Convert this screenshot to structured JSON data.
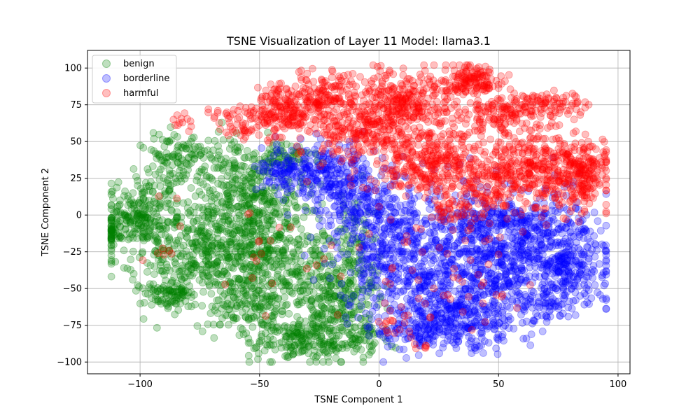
{
  "chart_data": {
    "type": "scatter",
    "title": "TSNE Visualization of Layer 11 Model: llama3.1",
    "xlabel": "TSNE Component 1",
    "ylabel": "TSNE Component 2",
    "xlim": [
      -122,
      105
    ],
    "ylim": [
      -108,
      112
    ],
    "xticks": [
      -100,
      -50,
      0,
      50,
      100
    ],
    "yticks": [
      -100,
      -75,
      -50,
      -25,
      0,
      25,
      50,
      75,
      100
    ],
    "xtick_labels": [
      "−100",
      "−50",
      "0",
      "50",
      "100"
    ],
    "ytick_labels": [
      "−100",
      "−75",
      "−50",
      "−25",
      "0",
      "25",
      "50",
      "75",
      "100"
    ],
    "grid": true,
    "legend_position": "top-left",
    "marker_alpha": 0.25,
    "series": [
      {
        "name": "benign",
        "color": "#008000",
        "clusters": [
          {
            "cx": -72,
            "cy": -25,
            "sx": 18,
            "sy": 20,
            "n": 520
          },
          {
            "cx": -45,
            "cy": -20,
            "sx": 14,
            "sy": 22,
            "n": 380
          },
          {
            "cx": -28,
            "cy": -85,
            "sx": 12,
            "sy": 8,
            "n": 260
          },
          {
            "cx": -100,
            "cy": 0,
            "sx": 8,
            "sy": 10,
            "n": 200
          },
          {
            "cx": -88,
            "cy": 35,
            "sx": 6,
            "sy": 12,
            "n": 90
          },
          {
            "cx": -55,
            "cy": 15,
            "sx": 10,
            "sy": 15,
            "n": 200
          },
          {
            "cx": -20,
            "cy": -55,
            "sx": 10,
            "sy": 15,
            "n": 210
          },
          {
            "cx": -88,
            "cy": -55,
            "sx": 6,
            "sy": 5,
            "n": 70
          },
          {
            "cx": -55,
            "cy": -65,
            "sx": 10,
            "sy": 8,
            "n": 110
          },
          {
            "cx": -80,
            "cy": 45,
            "sx": 4,
            "sy": 6,
            "n": 25
          },
          {
            "cx": -65,
            "cy": 35,
            "sx": 6,
            "sy": 10,
            "n": 60
          },
          {
            "cx": -40,
            "cy": 40,
            "sx": 6,
            "sy": 5,
            "n": 60
          },
          {
            "cx": -10,
            "cy": -30,
            "sx": 6,
            "sy": 20,
            "n": 90
          },
          {
            "cx": -110,
            "cy": -12,
            "sx": 4,
            "sy": 4,
            "n": 35
          },
          {
            "cx": -5,
            "cy": -80,
            "sx": 3,
            "sy": 6,
            "n": 25
          }
        ]
      },
      {
        "name": "borderline",
        "color": "#0000ff",
        "clusters": [
          {
            "cx": 35,
            "cy": -30,
            "sx": 20,
            "sy": 25,
            "n": 650
          },
          {
            "cx": 65,
            "cy": -25,
            "sx": 15,
            "sy": 18,
            "n": 420
          },
          {
            "cx": 30,
            "cy": -70,
            "sx": 15,
            "sy": 10,
            "n": 300
          },
          {
            "cx": 5,
            "cy": -20,
            "sx": 12,
            "sy": 20,
            "n": 300
          },
          {
            "cx": -25,
            "cy": 30,
            "sx": 12,
            "sy": 10,
            "n": 220
          },
          {
            "cx": -10,
            "cy": 10,
            "sx": 10,
            "sy": 12,
            "n": 180
          },
          {
            "cx": 80,
            "cy": -35,
            "sx": 8,
            "sy": 12,
            "n": 130
          },
          {
            "cx": 50,
            "cy": -5,
            "sx": 12,
            "sy": 5,
            "n": 110
          },
          {
            "cx": 15,
            "cy": -80,
            "sx": 8,
            "sy": 4,
            "n": 60
          },
          {
            "cx": 70,
            "cy": -60,
            "sx": 6,
            "sy": 5,
            "n": 45
          },
          {
            "cx": -40,
            "cy": 30,
            "sx": 5,
            "sy": 5,
            "n": 45
          }
        ]
      },
      {
        "name": "harmful",
        "color": "#ff0000",
        "clusters": [
          {
            "cx": 65,
            "cy": 30,
            "sx": 15,
            "sy": 14,
            "n": 520
          },
          {
            "cx": 10,
            "cy": 75,
            "sx": 14,
            "sy": 12,
            "n": 380
          },
          {
            "cx": 20,
            "cy": 35,
            "sx": 12,
            "sy": 12,
            "n": 330
          },
          {
            "cx": 40,
            "cy": 92,
            "sx": 6,
            "sy": 5,
            "n": 120
          },
          {
            "cx": -25,
            "cy": 82,
            "sx": 8,
            "sy": 7,
            "n": 140
          },
          {
            "cx": -40,
            "cy": 68,
            "sx": 7,
            "sy": 6,
            "n": 130
          },
          {
            "cx": -10,
            "cy": 55,
            "sx": 10,
            "sy": 8,
            "n": 170
          },
          {
            "cx": 72,
            "cy": 75,
            "sx": 8,
            "sy": 4,
            "n": 90
          },
          {
            "cx": 85,
            "cy": 30,
            "sx": 5,
            "sy": 10,
            "n": 110
          },
          {
            "cx": 50,
            "cy": 70,
            "sx": 8,
            "sy": 6,
            "n": 110
          },
          {
            "cx": -55,
            "cy": 62,
            "sx": 6,
            "sy": 6,
            "n": 70
          },
          {
            "cx": -45,
            "cy": 82,
            "sx": 3,
            "sy": 3,
            "n": 20
          },
          {
            "cx": 35,
            "cy": 5,
            "sx": 8,
            "sy": 5,
            "n": 60
          },
          {
            "cx": -82,
            "cy": 64,
            "sx": 2,
            "sy": 3,
            "n": 12
          },
          {
            "cx": -70,
            "cy": 70,
            "sx": 2,
            "sy": 2,
            "n": 6
          },
          {
            "cx": 25,
            "cy": -40,
            "sx": 18,
            "sy": 22,
            "n": 65
          },
          {
            "cx": -40,
            "cy": -20,
            "sx": 22,
            "sy": 22,
            "n": 25
          },
          {
            "cx": -90,
            "cy": -25,
            "sx": 2,
            "sy": 2,
            "n": 5
          },
          {
            "cx": 5,
            "cy": -75,
            "sx": 2,
            "sy": 4,
            "n": 10
          },
          {
            "cx": 20,
            "cy": -90,
            "sx": 3,
            "sy": 1,
            "n": 6
          }
        ]
      }
    ]
  }
}
